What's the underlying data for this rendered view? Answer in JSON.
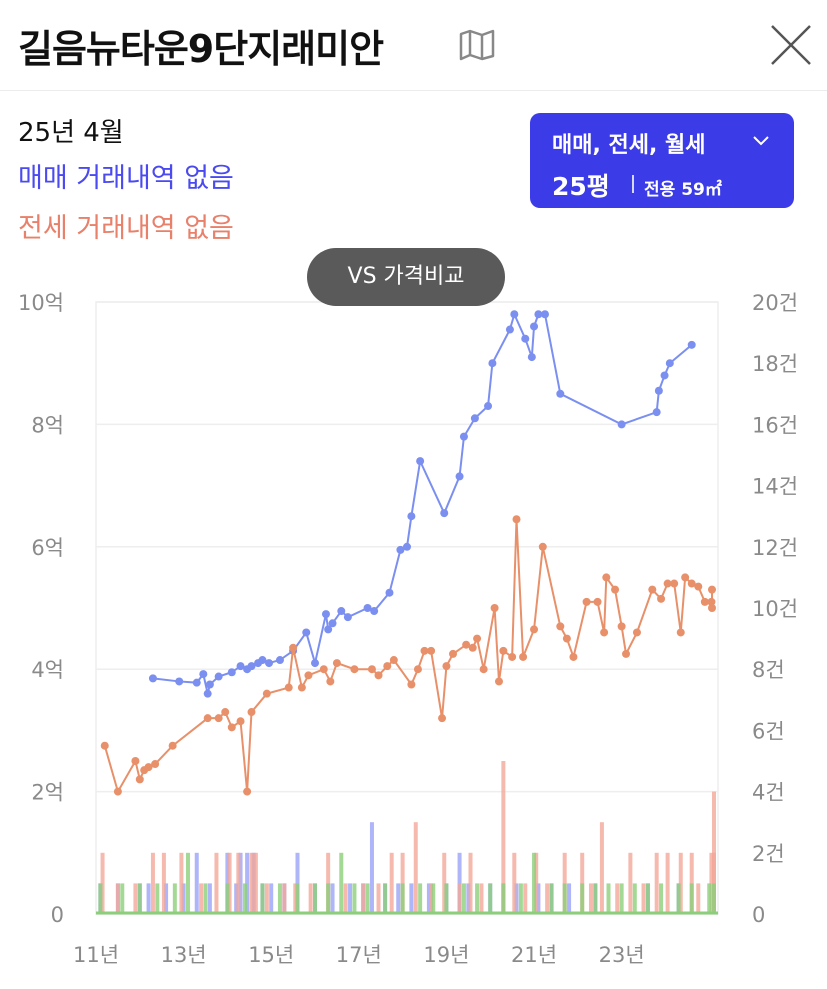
{
  "header": {
    "title": "길음뉴타운9단지래미안"
  },
  "info": {
    "date": "25년 4월",
    "sale_status": "매매 거래내역 없음",
    "jeonse_status": "전세 거래내역 없음"
  },
  "filter": {
    "types": "매매, 전세, 월세",
    "pyeong": "25평",
    "area": "전용 59㎡"
  },
  "compare_button": "VS 가격비교",
  "icons": {
    "map": "map-icon",
    "close": "close-icon",
    "dropdown": "chevron-down-icon"
  },
  "colors": {
    "sale": "#7b8ff0",
    "jeonse": "#e8906a",
    "sale_volume": "#9aa2f7",
    "jeonse_volume": "#f2a898",
    "monthly_volume": "#8ccf7a",
    "filter_bg": "#3b3be8"
  },
  "chart_data": {
    "type": "line",
    "x_ticks": [
      "11년",
      "13년",
      "15년",
      "17년",
      "19년",
      "21년",
      "23년"
    ],
    "x_tick_values": [
      2011,
      2013,
      2015,
      2017,
      2019,
      2021,
      2023
    ],
    "xlim": [
      2011,
      2025.2
    ],
    "y_left_ticks": [
      "0",
      "2억",
      "4억",
      "6억",
      "8억",
      "10억"
    ],
    "y_left_tick_values": [
      0,
      2,
      4,
      6,
      8,
      10
    ],
    "ylim_left": [
      0,
      10
    ],
    "y_right_ticks": [
      "0",
      "2건",
      "4건",
      "6건",
      "8건",
      "10건",
      "12건",
      "14건",
      "16건",
      "18건",
      "20건"
    ],
    "y_right_tick_values": [
      0,
      2,
      4,
      6,
      8,
      10,
      12,
      14,
      16,
      18,
      20
    ],
    "ylim_right": [
      0,
      20
    ],
    "grid": true,
    "series": [
      {
        "key": "sale",
        "axis": "left",
        "points": [
          [
            2012.3,
            3.85
          ],
          [
            2012.9,
            3.8
          ],
          [
            2013.3,
            3.78
          ],
          [
            2013.45,
            3.92
          ],
          [
            2013.55,
            3.6
          ],
          [
            2013.6,
            3.75
          ],
          [
            2013.8,
            3.88
          ],
          [
            2014.1,
            3.95
          ],
          [
            2014.3,
            4.05
          ],
          [
            2014.45,
            4.0
          ],
          [
            2014.55,
            4.05
          ],
          [
            2014.7,
            4.1
          ],
          [
            2014.8,
            4.15
          ],
          [
            2014.95,
            4.1
          ],
          [
            2015.2,
            4.15
          ],
          [
            2015.5,
            4.3
          ],
          [
            2015.8,
            4.6
          ],
          [
            2016.0,
            4.1
          ],
          [
            2016.25,
            4.9
          ],
          [
            2016.3,
            4.65
          ],
          [
            2016.4,
            4.75
          ],
          [
            2016.6,
            4.95
          ],
          [
            2016.75,
            4.85
          ],
          [
            2017.2,
            5.0
          ],
          [
            2017.35,
            4.95
          ],
          [
            2017.7,
            5.25
          ],
          [
            2017.95,
            5.95
          ],
          [
            2018.1,
            6.0
          ],
          [
            2018.2,
            6.5
          ],
          [
            2018.4,
            7.4
          ],
          [
            2018.95,
            6.55
          ],
          [
            2019.3,
            7.15
          ],
          [
            2019.4,
            7.8
          ],
          [
            2019.65,
            8.1
          ],
          [
            2019.95,
            8.3
          ],
          [
            2020.05,
            9.0
          ],
          [
            2020.45,
            9.55
          ],
          [
            2020.55,
            9.8
          ],
          [
            2020.8,
            9.4
          ],
          [
            2020.95,
            9.1
          ],
          [
            2021.0,
            9.6
          ],
          [
            2021.1,
            9.8
          ],
          [
            2021.25,
            9.8
          ],
          [
            2021.6,
            8.5
          ],
          [
            2023.0,
            8.0
          ],
          [
            2023.8,
            8.2
          ],
          [
            2023.85,
            8.55
          ],
          [
            2023.98,
            8.8
          ],
          [
            2024.1,
            9.0
          ],
          [
            2024.6,
            9.3
          ]
        ]
      },
      {
        "key": "jeonse",
        "axis": "left",
        "points": [
          [
            2011.2,
            2.75
          ],
          [
            2011.5,
            2.0
          ],
          [
            2011.9,
            2.5
          ],
          [
            2012.0,
            2.2
          ],
          [
            2012.1,
            2.35
          ],
          [
            2012.2,
            2.4
          ],
          [
            2012.35,
            2.45
          ],
          [
            2012.75,
            2.75
          ],
          [
            2013.55,
            3.2
          ],
          [
            2013.8,
            3.2
          ],
          [
            2013.95,
            3.3
          ],
          [
            2014.1,
            3.05
          ],
          [
            2014.3,
            3.15
          ],
          [
            2014.45,
            2.0
          ],
          [
            2014.55,
            3.3
          ],
          [
            2014.9,
            3.6
          ],
          [
            2015.4,
            3.7
          ],
          [
            2015.5,
            4.35
          ],
          [
            2015.7,
            3.7
          ],
          [
            2015.85,
            3.9
          ],
          [
            2016.2,
            4.0
          ],
          [
            2016.35,
            3.8
          ],
          [
            2016.5,
            4.1
          ],
          [
            2016.9,
            4.0
          ],
          [
            2017.3,
            4.0
          ],
          [
            2017.45,
            3.9
          ],
          [
            2017.65,
            4.05
          ],
          [
            2017.8,
            4.15
          ],
          [
            2018.2,
            3.75
          ],
          [
            2018.35,
            4.0
          ],
          [
            2018.5,
            4.3
          ],
          [
            2018.65,
            4.3
          ],
          [
            2018.9,
            3.2
          ],
          [
            2019.0,
            4.05
          ],
          [
            2019.15,
            4.25
          ],
          [
            2019.45,
            4.4
          ],
          [
            2019.6,
            4.35
          ],
          [
            2019.7,
            4.5
          ],
          [
            2019.85,
            4.0
          ],
          [
            2020.1,
            5.0
          ],
          [
            2020.2,
            3.8
          ],
          [
            2020.3,
            4.3
          ],
          [
            2020.5,
            4.2
          ],
          [
            2020.6,
            6.45
          ],
          [
            2020.75,
            4.2
          ],
          [
            2021.0,
            4.65
          ],
          [
            2021.2,
            6.0
          ],
          [
            2021.6,
            4.7
          ],
          [
            2021.75,
            4.5
          ],
          [
            2021.9,
            4.2
          ],
          [
            2022.2,
            5.1
          ],
          [
            2022.45,
            5.1
          ],
          [
            2022.6,
            4.6
          ],
          [
            2022.65,
            5.5
          ],
          [
            2022.85,
            5.3
          ],
          [
            2023.0,
            4.7
          ],
          [
            2023.1,
            4.25
          ],
          [
            2023.35,
            4.6
          ],
          [
            2023.7,
            5.3
          ],
          [
            2023.9,
            5.15
          ],
          [
            2024.05,
            5.4
          ],
          [
            2024.2,
            5.4
          ],
          [
            2024.35,
            4.6
          ],
          [
            2024.45,
            5.5
          ],
          [
            2024.6,
            5.4
          ],
          [
            2024.75,
            5.35
          ],
          [
            2024.9,
            5.1
          ],
          [
            2025.05,
            5.1
          ],
          [
            2025.2,
            5.0
          ],
          [
            2025.25,
            5.3
          ]
        ]
      }
    ],
    "volume_series": [
      {
        "key": "sale_volume",
        "bars": [
          [
            2011.1,
            1
          ],
          [
            2011.5,
            1
          ],
          [
            2012.0,
            1
          ],
          [
            2012.2,
            1
          ],
          [
            2012.6,
            1
          ],
          [
            2013.0,
            1
          ],
          [
            2013.3,
            2
          ],
          [
            2013.6,
            1
          ],
          [
            2014.0,
            2
          ],
          [
            2014.2,
            1
          ],
          [
            2014.3,
            2
          ],
          [
            2014.45,
            2
          ],
          [
            2014.6,
            2
          ],
          [
            2014.8,
            1
          ],
          [
            2015.0,
            1
          ],
          [
            2015.3,
            1
          ],
          [
            2015.6,
            2
          ],
          [
            2016.0,
            1
          ],
          [
            2016.4,
            1
          ],
          [
            2016.8,
            1
          ],
          [
            2017.1,
            1
          ],
          [
            2017.3,
            3
          ],
          [
            2017.6,
            1
          ],
          [
            2017.9,
            1
          ],
          [
            2018.2,
            1
          ],
          [
            2018.6,
            1
          ],
          [
            2019.0,
            1
          ],
          [
            2019.3,
            2
          ],
          [
            2019.5,
            1
          ],
          [
            2020.0,
            1
          ],
          [
            2020.3,
            1
          ],
          [
            2020.6,
            1
          ],
          [
            2021.1,
            1
          ],
          [
            2021.4,
            1
          ],
          [
            2021.8,
            1
          ],
          [
            2022.4,
            1
          ],
          [
            2023.6,
            1
          ],
          [
            2024.3,
            1
          ]
        ]
      },
      {
        "key": "jeonse_volume",
        "bars": [
          [
            2011.15,
            2
          ],
          [
            2011.5,
            1
          ],
          [
            2011.9,
            1
          ],
          [
            2012.3,
            2
          ],
          [
            2012.55,
            2
          ],
          [
            2012.95,
            2
          ],
          [
            2013.4,
            1
          ],
          [
            2013.75,
            2
          ],
          [
            2014.05,
            2
          ],
          [
            2014.25,
            2
          ],
          [
            2014.55,
            2
          ],
          [
            2014.65,
            2
          ],
          [
            2014.9,
            1
          ],
          [
            2015.3,
            1
          ],
          [
            2015.55,
            1
          ],
          [
            2015.9,
            1
          ],
          [
            2016.3,
            2
          ],
          [
            2016.7,
            1
          ],
          [
            2017.1,
            1
          ],
          [
            2017.45,
            1
          ],
          [
            2017.75,
            2
          ],
          [
            2018.0,
            2
          ],
          [
            2018.3,
            3
          ],
          [
            2018.65,
            1
          ],
          [
            2018.95,
            2
          ],
          [
            2019.3,
            1
          ],
          [
            2019.55,
            2
          ],
          [
            2019.8,
            1
          ],
          [
            2020.3,
            5
          ],
          [
            2020.55,
            2
          ],
          [
            2020.8,
            1
          ],
          [
            2021.05,
            2
          ],
          [
            2021.3,
            1
          ],
          [
            2021.7,
            2
          ],
          [
            2022.1,
            2
          ],
          [
            2022.3,
            1
          ],
          [
            2022.55,
            3
          ],
          [
            2022.9,
            1
          ],
          [
            2023.2,
            2
          ],
          [
            2023.5,
            1
          ],
          [
            2023.8,
            2
          ],
          [
            2024.05,
            2
          ],
          [
            2024.35,
            2
          ],
          [
            2024.6,
            2
          ],
          [
            2024.75,
            1
          ],
          [
            2025.05,
            2
          ],
          [
            2025.2,
            4
          ],
          [
            2025.3,
            2
          ]
        ]
      },
      {
        "key": "monthly_volume",
        "bars": [
          [
            2011.1,
            1
          ],
          [
            2011.6,
            1
          ],
          [
            2012.0,
            1
          ],
          [
            2012.4,
            1
          ],
          [
            2012.8,
            1
          ],
          [
            2013.1,
            2
          ],
          [
            2013.5,
            1
          ],
          [
            2014.0,
            1
          ],
          [
            2014.4,
            1
          ],
          [
            2014.8,
            1
          ],
          [
            2015.2,
            1
          ],
          [
            2015.6,
            1
          ],
          [
            2016.0,
            1
          ],
          [
            2016.3,
            1
          ],
          [
            2016.6,
            2
          ],
          [
            2016.9,
            1
          ],
          [
            2017.2,
            1
          ],
          [
            2017.6,
            1
          ],
          [
            2018.0,
            1
          ],
          [
            2018.4,
            1
          ],
          [
            2018.7,
            1
          ],
          [
            2019.0,
            1
          ],
          [
            2019.4,
            1
          ],
          [
            2019.7,
            1
          ],
          [
            2020.0,
            1
          ],
          [
            2020.3,
            1
          ],
          [
            2020.7,
            1
          ],
          [
            2021.0,
            2
          ],
          [
            2021.4,
            1
          ],
          [
            2021.7,
            1
          ],
          [
            2022.1,
            1
          ],
          [
            2022.4,
            1
          ],
          [
            2022.7,
            1
          ],
          [
            2023.0,
            1
          ],
          [
            2023.3,
            1
          ],
          [
            2023.6,
            1
          ],
          [
            2023.9,
            1
          ],
          [
            2024.3,
            1
          ],
          [
            2024.6,
            1
          ],
          [
            2025.0,
            1
          ],
          [
            2025.3,
            1
          ]
        ]
      }
    ]
  }
}
